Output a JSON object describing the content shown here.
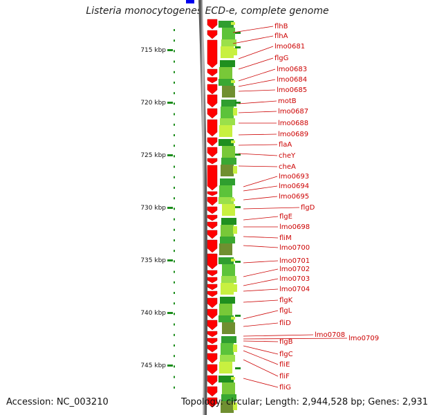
{
  "title": "Listeria monocytogenes ECD-e, complete genome",
  "footer": {
    "accession": "Accession: NC_003210",
    "topology": "Topology: circular; Length: 2,944,528 bp; Genes: 2,931"
  },
  "ruler": {
    "unit": "kbp",
    "ticks": [
      "715 kbp",
      "720 kbp",
      "725 kbp",
      "730 kbp",
      "735 kbp",
      "740 kbp",
      "745 kbp"
    ]
  },
  "colors": {
    "gene_arrow": "#ff0000",
    "gene_label": "#cc0000",
    "gc_track_dark": "#1f8f1f",
    "gc_track_light": "#c8f040",
    "ruler": "#1a8c1a",
    "backbone": "#888888",
    "marker": "#0000ee"
  },
  "genes": [
    "flhB",
    "flhA",
    "lmo0681",
    "flgG",
    "lmo0683",
    "lmo0684",
    "lmo0685",
    "motB",
    "lmo0687",
    "lmo0688",
    "lmo0689",
    "flaA",
    "cheY",
    "cheA",
    "lmo0693",
    "lmo0694",
    "lmo0695",
    "flgD",
    "flgE",
    "lmo0698",
    "fliM",
    "lmo0700",
    "lmo0701",
    "lmo0702",
    "lmo0703",
    "lmo0704",
    "flgK",
    "flgL",
    "fliD",
    "lmo0708",
    "lmo0709",
    "flgB",
    "flgC",
    "fliE",
    "fliF",
    "fliG"
  ]
}
